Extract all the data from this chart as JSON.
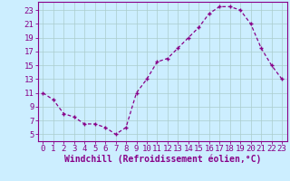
{
  "hours": [
    0,
    1,
    2,
    3,
    4,
    5,
    6,
    7,
    8,
    9,
    10,
    11,
    12,
    13,
    14,
    15,
    16,
    17,
    18,
    19,
    20,
    21,
    22,
    23
  ],
  "values": [
    11,
    10,
    8,
    7.5,
    6.5,
    6.5,
    6,
    5,
    6,
    11,
    13,
    15.5,
    16,
    17.5,
    19,
    20.5,
    22.5,
    23.5,
    23.5,
    23,
    21,
    17.5,
    15,
    13
  ],
  "line_color": "#880088",
  "marker": "+",
  "bg_color": "#cceeff",
  "grid_color": "#aacccc",
  "axis_color": "#880088",
  "xlabel": "Windchill (Refroidissement éolien,°C)",
  "xlim_min": -0.5,
  "xlim_max": 23.5,
  "ylim_min": 4,
  "ylim_max": 24.2,
  "yticks": [
    5,
    7,
    9,
    11,
    13,
    15,
    17,
    19,
    21,
    23
  ],
  "xticks": [
    0,
    1,
    2,
    3,
    4,
    5,
    6,
    7,
    8,
    9,
    10,
    11,
    12,
    13,
    14,
    15,
    16,
    17,
    18,
    19,
    20,
    21,
    22,
    23
  ],
  "label_fontsize": 7,
  "tick_fontsize": 6.5
}
